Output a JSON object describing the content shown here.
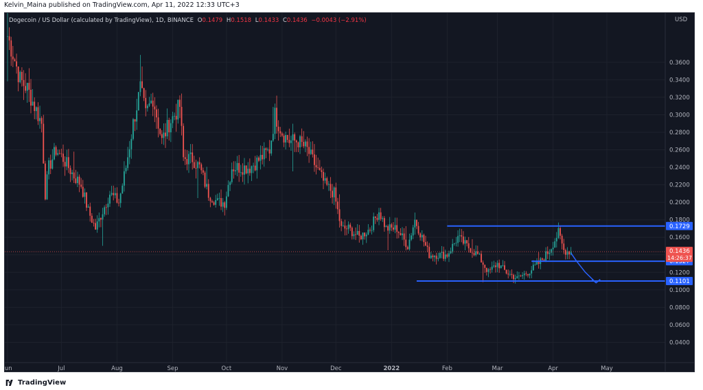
{
  "header": {
    "publisher_line": "Kelvin_Maina published on TradingView.com, Apr 11, 2022 12:33 UTC+3"
  },
  "legend": {
    "symbol": "Dogecoin / US Dollar (calculated by TradingView), 1D, BINANCE",
    "open_label": "O",
    "open": "0.1479",
    "high_label": "H",
    "high": "0.1518",
    "low_label": "L",
    "low": "0.1433",
    "close_label": "C",
    "close": "0.1436",
    "change": "−0.0043 (−2.91%)"
  },
  "currency_label": "USD",
  "colors": {
    "background": "#131722",
    "up": "#26a69a",
    "down": "#ef5350",
    "grid": "#1e222d",
    "line": "#2962ff",
    "axis_text": "#b2b5be",
    "price_label": "#ef5350"
  },
  "footer": {
    "brand": "TradingView"
  },
  "chart_data": {
    "type": "candlestick",
    "symbol": "DOGE/USD",
    "interval": "1D",
    "ylim": [
      0.02,
      0.41
    ],
    "xlim": [
      "2021-06-01",
      "2022-06-01"
    ],
    "y_ticks": [
      "0.0400",
      "0.0600",
      "0.0800",
      "0.1000",
      "0.1200",
      "0.1400",
      "0.1600",
      "0.1800",
      "0.2000",
      "0.2200",
      "0.2400",
      "0.2600",
      "0.2800",
      "0.3000",
      "0.3200",
      "0.3400",
      "0.3600"
    ],
    "x_ticks": [
      {
        "label": "Jun",
        "date": "2021-06-01"
      },
      {
        "label": "Jul",
        "date": "2021-07-01"
      },
      {
        "label": "Aug",
        "date": "2021-08-01"
      },
      {
        "label": "Sep",
        "date": "2021-09-01"
      },
      {
        "label": "Oct",
        "date": "2021-10-01"
      },
      {
        "label": "Nov",
        "date": "2021-11-01"
      },
      {
        "label": "Dec",
        "date": "2021-12-01"
      },
      {
        "label": "2022",
        "date": "2022-01-01",
        "bold": true
      },
      {
        "label": "Feb",
        "date": "2022-02-01"
      },
      {
        "label": "Mar",
        "date": "2022-03-01"
      },
      {
        "label": "Apr",
        "date": "2022-04-01"
      },
      {
        "label": "May",
        "date": "2022-05-01"
      }
    ],
    "price_path": [
      [
        "2021-06-01",
        0.39
      ],
      [
        "2021-06-04",
        0.37
      ],
      [
        "2021-06-08",
        0.34
      ],
      [
        "2021-06-12",
        0.33
      ],
      [
        "2021-06-16",
        0.31
      ],
      [
        "2021-06-20",
        0.29
      ],
      [
        "2021-06-22",
        0.21
      ],
      [
        "2021-06-24",
        0.24
      ],
      [
        "2021-06-28",
        0.26
      ],
      [
        "2021-07-02",
        0.25
      ],
      [
        "2021-07-08",
        0.23
      ],
      [
        "2021-07-12",
        0.22
      ],
      [
        "2021-07-16",
        0.19
      ],
      [
        "2021-07-20",
        0.17
      ],
      [
        "2021-07-24",
        0.19
      ],
      [
        "2021-07-28",
        0.21
      ],
      [
        "2021-08-02",
        0.2
      ],
      [
        "2021-08-06",
        0.24
      ],
      [
        "2021-08-10",
        0.29
      ],
      [
        "2021-08-14",
        0.33
      ],
      [
        "2021-08-17",
        0.3
      ],
      [
        "2021-08-21",
        0.32
      ],
      [
        "2021-08-26",
        0.27
      ],
      [
        "2021-08-30",
        0.29
      ],
      [
        "2021-09-05",
        0.31
      ],
      [
        "2021-09-07",
        0.25
      ],
      [
        "2021-09-12",
        0.25
      ],
      [
        "2021-09-16",
        0.24
      ],
      [
        "2021-09-21",
        0.21
      ],
      [
        "2021-09-26",
        0.2
      ],
      [
        "2021-09-30",
        0.2
      ],
      [
        "2021-10-04",
        0.24
      ],
      [
        "2021-10-10",
        0.24
      ],
      [
        "2021-10-14",
        0.24
      ],
      [
        "2021-10-20",
        0.25
      ],
      [
        "2021-10-25",
        0.26
      ],
      [
        "2021-10-28",
        0.3
      ],
      [
        "2021-11-01",
        0.28
      ],
      [
        "2021-11-05",
        0.27
      ],
      [
        "2021-11-10",
        0.27
      ],
      [
        "2021-11-15",
        0.26
      ],
      [
        "2021-11-20",
        0.24
      ],
      [
        "2021-11-25",
        0.22
      ],
      [
        "2021-11-30",
        0.21
      ],
      [
        "2021-12-04",
        0.17
      ],
      [
        "2021-12-08",
        0.17
      ],
      [
        "2021-12-14",
        0.16
      ],
      [
        "2021-12-20",
        0.17
      ],
      [
        "2021-12-25",
        0.19
      ],
      [
        "2021-12-29",
        0.17
      ],
      [
        "2022-01-04",
        0.17
      ],
      [
        "2022-01-10",
        0.15
      ],
      [
        "2022-01-14",
        0.18
      ],
      [
        "2022-01-18",
        0.16
      ],
      [
        "2022-01-22",
        0.14
      ],
      [
        "2022-01-27",
        0.14
      ],
      [
        "2022-02-01",
        0.14
      ],
      [
        "2022-02-07",
        0.16
      ],
      [
        "2022-02-12",
        0.15
      ],
      [
        "2022-02-18",
        0.14
      ],
      [
        "2022-02-24",
        0.12
      ],
      [
        "2022-03-01",
        0.13
      ],
      [
        "2022-03-06",
        0.12
      ],
      [
        "2022-03-12",
        0.113
      ],
      [
        "2022-03-18",
        0.12
      ],
      [
        "2022-03-24",
        0.13
      ],
      [
        "2022-03-30",
        0.145
      ],
      [
        "2022-04-04",
        0.165
      ],
      [
        "2022-04-07",
        0.145
      ],
      [
        "2022-04-11",
        0.1436
      ]
    ],
    "horizontal_levels": [
      {
        "price": 0.1729,
        "label": "0.1729",
        "from": "2022-02-01",
        "to": "2022-06-01"
      },
      {
        "price": 0.1327,
        "label": "0.1327",
        "from": "2022-03-20",
        "to": "2022-06-01"
      },
      {
        "price": 0.1101,
        "label": "0.1101",
        "from": "2022-01-15",
        "to": "2022-06-01"
      }
    ],
    "projection_arrow": [
      [
        "2022-04-11",
        0.142
      ],
      [
        "2022-04-14",
        0.133
      ],
      [
        "2022-04-19",
        0.12
      ],
      [
        "2022-04-25",
        0.108
      ]
    ],
    "last_price": {
      "price": 0.1436,
      "label": "0.1436",
      "countdown": "14:26:37"
    }
  }
}
